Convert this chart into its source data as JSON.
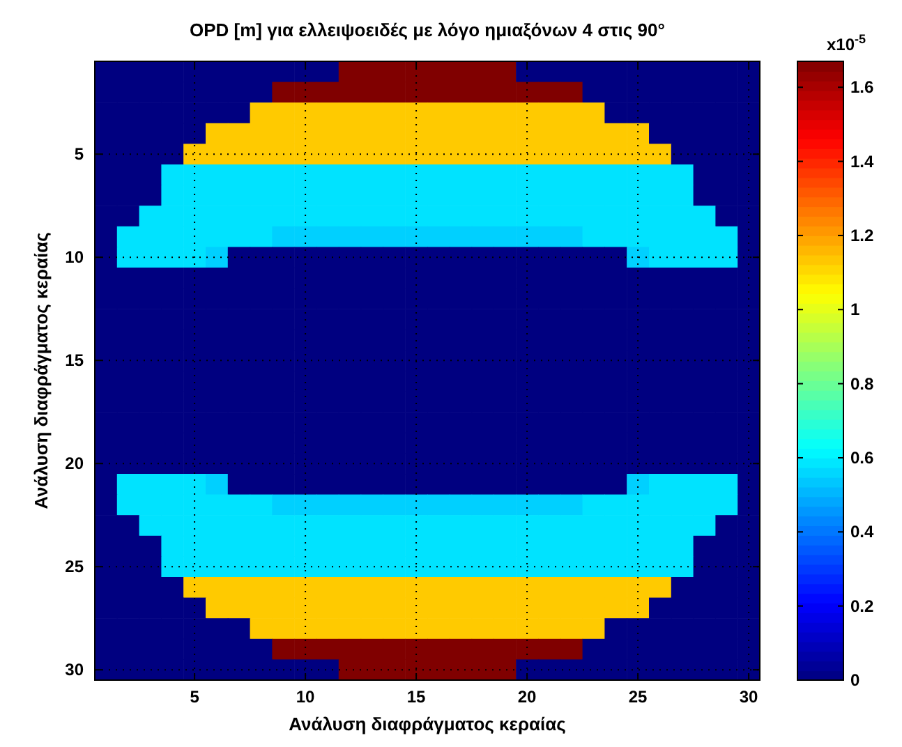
{
  "chart_data": {
    "type": "heatmap",
    "title": "OPD [m] για ελλειψοειδές με λόγο ημιαξόνων 4 στις 90°",
    "xlabel": "Ανάλυση διαφράγματος κεραίας",
    "ylabel": "Ανάλυση διαφράγματος κεραίας",
    "clabel": "x10$^{-5}$",
    "x": [
      1,
      2,
      3,
      4,
      5,
      6,
      7,
      8,
      9,
      10,
      11,
      12,
      13,
      14,
      15,
      16,
      17,
      18,
      19,
      20,
      21,
      22,
      23,
      24,
      25,
      26,
      27,
      28,
      29,
      30
    ],
    "y": [
      1,
      2,
      3,
      4,
      5,
      6,
      7,
      8,
      9,
      10,
      11,
      12,
      13,
      14,
      15,
      16,
      17,
      18,
      19,
      20,
      21,
      22,
      23,
      24,
      25,
      26,
      27,
      28,
      29,
      30
    ],
    "xlim": [
      0.5,
      30.5
    ],
    "ylim": [
      30.5,
      0.5
    ],
    "xticks": [
      5,
      10,
      15,
      20,
      25,
      30
    ],
    "yticks": [
      5,
      10,
      15,
      20,
      25,
      30
    ],
    "clim": [
      0,
      1.67
    ],
    "cticks": [
      0,
      0.2,
      0.4,
      0.6,
      0.8,
      1,
      1.2,
      1.4,
      1.6
    ],
    "grid": true,
    "cells": [
      [
        0,
        0,
        0,
        0,
        0,
        0,
        0,
        0,
        0,
        0,
        0,
        1.67,
        1.67,
        1.67,
        1.67,
        1.67,
        1.67,
        1.67,
        1.67,
        0,
        0,
        0,
        0,
        0,
        0,
        0,
        0,
        0,
        0,
        0
      ],
      [
        0,
        0,
        0,
        0,
        0,
        0,
        0,
        0,
        1.67,
        1.67,
        1.67,
        1.67,
        1.67,
        1.67,
        1.67,
        1.67,
        1.67,
        1.67,
        1.67,
        1.67,
        1.67,
        1.67,
        0,
        0,
        0,
        0,
        0,
        0,
        0,
        0
      ],
      [
        0,
        0,
        0,
        0,
        0,
        0,
        0,
        1.13,
        1.13,
        1.13,
        1.13,
        1.13,
        1.13,
        1.13,
        1.13,
        1.13,
        1.13,
        1.13,
        1.13,
        1.13,
        1.13,
        1.13,
        1.13,
        0,
        0,
        0,
        0,
        0,
        0,
        0
      ],
      [
        0,
        0,
        0,
        0,
        0,
        1.13,
        1.13,
        1.13,
        1.13,
        1.13,
        1.13,
        1.13,
        1.13,
        1.13,
        1.13,
        1.13,
        1.13,
        1.13,
        1.13,
        1.13,
        1.13,
        1.13,
        1.13,
        1.13,
        1.13,
        0,
        0,
        0,
        0,
        0
      ],
      [
        0,
        0,
        0,
        0,
        1.13,
        1.13,
        1.13,
        1.13,
        1.13,
        1.13,
        1.13,
        1.13,
        1.13,
        1.13,
        1.13,
        1.13,
        1.13,
        1.13,
        1.13,
        1.13,
        1.13,
        1.13,
        1.13,
        1.13,
        1.13,
        1.13,
        0,
        0,
        0,
        0
      ],
      [
        0,
        0,
        0,
        0.58,
        0.58,
        0.58,
        0.58,
        0.58,
        0.58,
        0.58,
        0.58,
        0.58,
        0.58,
        0.58,
        0.58,
        0.58,
        0.58,
        0.58,
        0.58,
        0.58,
        0.58,
        0.58,
        0.58,
        0.58,
        0.58,
        0.58,
        0.58,
        0,
        0,
        0
      ],
      [
        0,
        0,
        0,
        0.58,
        0.58,
        0.58,
        0.58,
        0.58,
        0.58,
        0.58,
        0.58,
        0.58,
        0.58,
        0.58,
        0.58,
        0.58,
        0.58,
        0.58,
        0.58,
        0.58,
        0.58,
        0.58,
        0.58,
        0.58,
        0.58,
        0.58,
        0.58,
        0,
        0,
        0
      ],
      [
        0,
        0,
        0.58,
        0.58,
        0.58,
        0.58,
        0.58,
        0.58,
        0.58,
        0.58,
        0.58,
        0.58,
        0.58,
        0.58,
        0.58,
        0.58,
        0.58,
        0.58,
        0.58,
        0.58,
        0.58,
        0.58,
        0.58,
        0.58,
        0.58,
        0.58,
        0.58,
        0.58,
        0,
        0
      ],
      [
        0,
        0.58,
        0.58,
        0.58,
        0.58,
        0.58,
        0.58,
        0.58,
        0.55,
        0.55,
        0.55,
        0.55,
        0.55,
        0.55,
        0.55,
        0.55,
        0.55,
        0.55,
        0.55,
        0.55,
        0.55,
        0.55,
        0.58,
        0.58,
        0.58,
        0.58,
        0.58,
        0.58,
        0.58,
        0
      ],
      [
        0,
        0.58,
        0.58,
        0.58,
        0.58,
        0.55,
        0,
        0,
        0,
        0,
        0,
        0,
        0,
        0,
        0,
        0,
        0,
        0,
        0,
        0,
        0,
        0,
        0,
        0,
        0.55,
        0.58,
        0.58,
        0.58,
        0.58,
        0
      ],
      [
        0,
        0,
        0,
        0,
        0,
        0,
        0,
        0,
        0,
        0,
        0,
        0,
        0,
        0,
        0,
        0,
        0,
        0,
        0,
        0,
        0,
        0,
        0,
        0,
        0,
        0,
        0,
        0,
        0,
        0
      ],
      [
        0,
        0,
        0,
        0,
        0,
        0,
        0,
        0,
        0,
        0,
        0,
        0,
        0,
        0,
        0,
        0,
        0,
        0,
        0,
        0,
        0,
        0,
        0,
        0,
        0,
        0,
        0,
        0,
        0,
        0
      ],
      [
        0,
        0,
        0,
        0,
        0,
        0,
        0,
        0,
        0,
        0,
        0,
        0,
        0,
        0,
        0,
        0,
        0,
        0,
        0,
        0,
        0,
        0,
        0,
        0,
        0,
        0,
        0,
        0,
        0,
        0
      ],
      [
        0,
        0,
        0,
        0,
        0,
        0,
        0,
        0,
        0,
        0,
        0,
        0,
        0,
        0,
        0,
        0,
        0,
        0,
        0,
        0,
        0,
        0,
        0,
        0,
        0,
        0,
        0,
        0,
        0,
        0
      ],
      [
        0,
        0,
        0,
        0,
        0,
        0,
        0,
        0,
        0,
        0,
        0,
        0,
        0,
        0,
        0,
        0,
        0,
        0,
        0,
        0,
        0,
        0,
        0,
        0,
        0,
        0,
        0,
        0,
        0,
        0
      ],
      [
        0,
        0,
        0,
        0,
        0,
        0,
        0,
        0,
        0,
        0,
        0,
        0,
        0,
        0,
        0,
        0,
        0,
        0,
        0,
        0,
        0,
        0,
        0,
        0,
        0,
        0,
        0,
        0,
        0,
        0
      ],
      [
        0,
        0,
        0,
        0,
        0,
        0,
        0,
        0,
        0,
        0,
        0,
        0,
        0,
        0,
        0,
        0,
        0,
        0,
        0,
        0,
        0,
        0,
        0,
        0,
        0,
        0,
        0,
        0,
        0,
        0
      ],
      [
        0,
        0,
        0,
        0,
        0,
        0,
        0,
        0,
        0,
        0,
        0,
        0,
        0,
        0,
        0,
        0,
        0,
        0,
        0,
        0,
        0,
        0,
        0,
        0,
        0,
        0,
        0,
        0,
        0,
        0
      ],
      [
        0,
        0,
        0,
        0,
        0,
        0,
        0,
        0,
        0,
        0,
        0,
        0,
        0,
        0,
        0,
        0,
        0,
        0,
        0,
        0,
        0,
        0,
        0,
        0,
        0,
        0,
        0,
        0,
        0,
        0
      ],
      [
        0,
        0,
        0,
        0,
        0,
        0,
        0,
        0,
        0,
        0,
        0,
        0,
        0,
        0,
        0,
        0,
        0,
        0,
        0,
        0,
        0,
        0,
        0,
        0,
        0,
        0,
        0,
        0,
        0,
        0
      ],
      [
        0,
        0.58,
        0.58,
        0.58,
        0.58,
        0.55,
        0,
        0,
        0,
        0,
        0,
        0,
        0,
        0,
        0,
        0,
        0,
        0,
        0,
        0,
        0,
        0,
        0,
        0,
        0.55,
        0.58,
        0.58,
        0.58,
        0.58,
        0
      ],
      [
        0,
        0.58,
        0.58,
        0.58,
        0.58,
        0.58,
        0.58,
        0.58,
        0.55,
        0.55,
        0.55,
        0.55,
        0.55,
        0.55,
        0.55,
        0.55,
        0.55,
        0.55,
        0.55,
        0.55,
        0.55,
        0.55,
        0.58,
        0.58,
        0.58,
        0.58,
        0.58,
        0.58,
        0.58,
        0
      ],
      [
        0,
        0,
        0.58,
        0.58,
        0.58,
        0.58,
        0.58,
        0.58,
        0.58,
        0.58,
        0.58,
        0.58,
        0.58,
        0.58,
        0.58,
        0.58,
        0.58,
        0.58,
        0.58,
        0.58,
        0.58,
        0.58,
        0.58,
        0.58,
        0.58,
        0.58,
        0.58,
        0.58,
        0,
        0
      ],
      [
        0,
        0,
        0,
        0.58,
        0.58,
        0.58,
        0.58,
        0.58,
        0.58,
        0.58,
        0.58,
        0.58,
        0.58,
        0.58,
        0.58,
        0.58,
        0.58,
        0.58,
        0.58,
        0.58,
        0.58,
        0.58,
        0.58,
        0.58,
        0.58,
        0.58,
        0.58,
        0,
        0,
        0
      ],
      [
        0,
        0,
        0,
        0.58,
        0.58,
        0.58,
        0.58,
        0.58,
        0.58,
        0.58,
        0.58,
        0.58,
        0.58,
        0.58,
        0.58,
        0.58,
        0.58,
        0.58,
        0.58,
        0.58,
        0.58,
        0.58,
        0.58,
        0.58,
        0.58,
        0.58,
        0.58,
        0,
        0,
        0
      ],
      [
        0,
        0,
        0,
        0,
        1.13,
        1.13,
        1.13,
        1.13,
        1.13,
        1.13,
        1.13,
        1.13,
        1.13,
        1.13,
        1.13,
        1.13,
        1.13,
        1.13,
        1.13,
        1.13,
        1.13,
        1.13,
        1.13,
        1.13,
        1.13,
        1.13,
        0,
        0,
        0,
        0
      ],
      [
        0,
        0,
        0,
        0,
        0,
        1.13,
        1.13,
        1.13,
        1.13,
        1.13,
        1.13,
        1.13,
        1.13,
        1.13,
        1.13,
        1.13,
        1.13,
        1.13,
        1.13,
        1.13,
        1.13,
        1.13,
        1.13,
        1.13,
        1.13,
        0,
        0,
        0,
        0,
        0
      ],
      [
        0,
        0,
        0,
        0,
        0,
        0,
        0,
        1.13,
        1.13,
        1.13,
        1.13,
        1.13,
        1.13,
        1.13,
        1.13,
        1.13,
        1.13,
        1.13,
        1.13,
        1.13,
        1.13,
        1.13,
        1.13,
        0,
        0,
        0,
        0,
        0,
        0,
        0
      ],
      [
        0,
        0,
        0,
        0,
        0,
        0,
        0,
        0,
        1.67,
        1.67,
        1.67,
        1.67,
        1.67,
        1.67,
        1.67,
        1.67,
        1.67,
        1.67,
        1.67,
        1.67,
        1.67,
        1.67,
        0,
        0,
        0,
        0,
        0,
        0,
        0,
        0
      ],
      [
        0,
        0,
        0,
        0,
        0,
        0,
        0,
        0,
        0,
        0,
        0,
        1.67,
        1.67,
        1.67,
        1.67,
        1.67,
        1.67,
        1.67,
        1.67,
        0,
        0,
        0,
        0,
        0,
        0,
        0,
        0,
        0,
        0,
        0
      ]
    ]
  }
}
